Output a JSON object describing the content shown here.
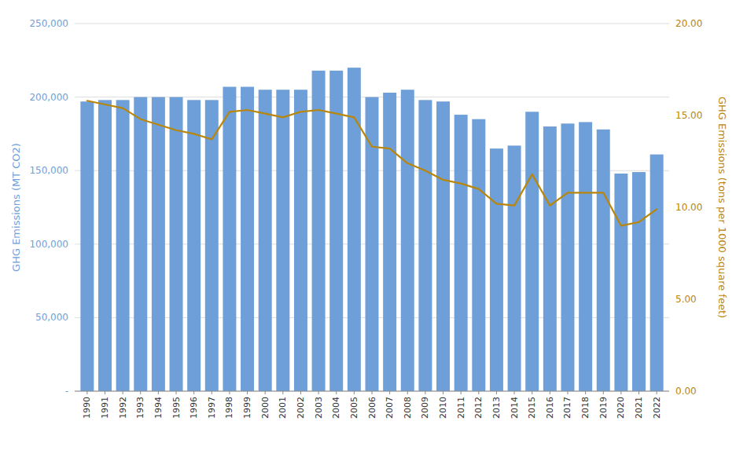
{
  "chart_data": {
    "type": "bar",
    "ylabel": "GHG Emissions (MT CO2)",
    "y2label": "GHG Emissions (tons per 1000 square feet)",
    "x": [
      1990,
      1991,
      1992,
      1993,
      1994,
      1995,
      1996,
      1997,
      1998,
      1999,
      2000,
      2001,
      2002,
      2003,
      2004,
      2005,
      2006,
      2007,
      2008,
      2009,
      2010,
      2011,
      2012,
      2013,
      2014,
      2015,
      2016,
      2017,
      2018,
      2019,
      2020,
      2021,
      2022
    ],
    "xlim": [
      1989.3,
      2022.7
    ],
    "xticks": [
      1990,
      1991,
      1992,
      1993,
      1994,
      1995,
      1996,
      1997,
      1998,
      1999,
      2000,
      2001,
      2002,
      2003,
      2004,
      2005,
      2006,
      2007,
      2008,
      2009,
      2010,
      2011,
      2012,
      2013,
      2014,
      2015,
      2016,
      2017,
      2018,
      2019,
      2020,
      2021,
      2022
    ],
    "ylim": [
      0,
      250000
    ],
    "yticks": [
      {
        "value": 0,
        "label": "-"
      },
      {
        "value": 50000,
        "label": "50,000"
      },
      {
        "value": 100000,
        "label": "100,000"
      },
      {
        "value": 150000,
        "label": "150,000"
      },
      {
        "value": 200000,
        "label": "200,000"
      },
      {
        "value": 250000,
        "label": "250,000"
      }
    ],
    "y2lim": [
      0,
      20.0
    ],
    "y2ticks": [
      {
        "value": 0.0,
        "label": "0.00"
      },
      {
        "value": 5.0,
        "label": "5.00"
      },
      {
        "value": 10.0,
        "label": "10.00"
      },
      {
        "value": 15.0,
        "label": "15.00"
      },
      {
        "value": 20.0,
        "label": "20.00"
      }
    ],
    "grid": true,
    "series": [
      {
        "type": "bar",
        "color": "#6F9FD8",
        "values": [
          197000,
          198000,
          198000,
          200000,
          200000,
          200000,
          198000,
          198000,
          207000,
          207000,
          205000,
          205000,
          205000,
          218000,
          218000,
          220000,
          200000,
          203000,
          205000,
          198000,
          197000,
          188000,
          185000,
          165000,
          167000,
          190000,
          180000,
          182000,
          183000,
          178000,
          148000,
          149000,
          161000
        ]
      },
      {
        "type": "line",
        "color": "#B8860B",
        "axis": "y2",
        "values": [
          15.8,
          15.6,
          15.4,
          14.8,
          14.5,
          14.2,
          14.0,
          13.7,
          15.2,
          15.3,
          15.1,
          14.9,
          15.2,
          15.3,
          15.1,
          14.9,
          13.3,
          13.2,
          12.4,
          12.0,
          11.5,
          11.3,
          11.0,
          10.2,
          10.1,
          11.8,
          10.1,
          10.8,
          10.8,
          10.8,
          9.0,
          9.2,
          9.9
        ]
      }
    ]
  }
}
